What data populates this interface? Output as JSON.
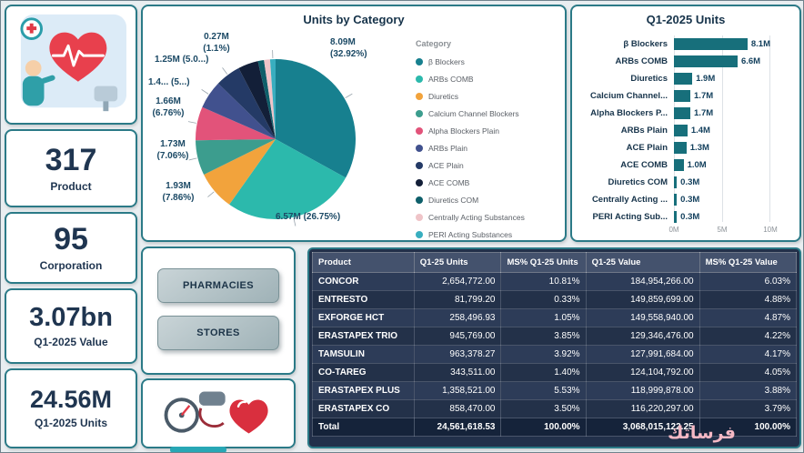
{
  "kpis": [
    {
      "value": "317",
      "label": "Product"
    },
    {
      "value": "95",
      "label": "Corporation"
    },
    {
      "value": "3.07bn",
      "label": "Q1-2025 Value"
    },
    {
      "value": "24.56M",
      "label": "Q1-2025 Units"
    }
  ],
  "buttons": {
    "pharmacies": "PHARMACIES",
    "stores": "STORES"
  },
  "watermark": "فرساتك",
  "chart_data": [
    {
      "type": "pie",
      "title": "Units by Category",
      "legend_title": "Category",
      "legend_position": "right",
      "categories": [
        "β Blockers",
        "ARBs COMB",
        "Diuretics",
        "Calcium Channel Blockers",
        "Alpha Blockers Plain",
        "ARBs Plain",
        "ACE Plain",
        "ACE COMB",
        "Diuretics COM",
        "Centrally Acting Substances",
        "PERI Acting Substances"
      ],
      "values": [
        8.09,
        6.57,
        1.93,
        1.73,
        1.66,
        1.4,
        1.25,
        1.0,
        0.3,
        0.3,
        0.27
      ],
      "percents": [
        32.92,
        26.75,
        7.86,
        7.06,
        6.76,
        5.7,
        5.09,
        4.07,
        1.22,
        1.22,
        1.1
      ],
      "colors": [
        "#17808f",
        "#2cb9ac",
        "#f2a33c",
        "#3c9d8e",
        "#e2537a",
        "#41518e",
        "#243a66",
        "#131f38",
        "#0e5f6a",
        "#efc4c8",
        "#38aebf"
      ],
      "point_labels": [
        {
          "slice": 0,
          "text": "8.09M\n(32.92%)"
        },
        {
          "slice": 1,
          "text": "6.57M (26.75%)"
        },
        {
          "slice": 2,
          "text": "1.93M\n(7.86%)"
        },
        {
          "slice": 3,
          "text": "1.73M\n(7.06%)"
        },
        {
          "slice": 4,
          "text": "1.66M\n(6.76%)"
        },
        {
          "slice": 5,
          "text": "1.4... (5...)"
        },
        {
          "slice": 6,
          "text": "1.25M (5.0...)"
        },
        {
          "slice": 10,
          "text": "0.27M\n(1.1%)"
        }
      ]
    },
    {
      "type": "bar",
      "orientation": "horizontal",
      "title": "Q1-2025 Units",
      "categories": [
        "β Blockers",
        "ARBs COMB",
        "Diuretics",
        "Calcium Channel...",
        "Alpha Blockers P...",
        "ARBs Plain",
        "ACE Plain",
        "ACE COMB",
        "Diuretics COM",
        "Centrally Acting ...",
        "PERI Acting Sub..."
      ],
      "values": [
        8.1,
        6.6,
        1.9,
        1.7,
        1.7,
        1.4,
        1.3,
        1.0,
        0.3,
        0.3,
        0.3
      ],
      "value_labels": [
        "8.1M",
        "6.6M",
        "1.9M",
        "1.7M",
        "1.7M",
        "1.4M",
        "1.3M",
        "1.0M",
        "0.3M",
        "0.3M",
        "0.3M"
      ],
      "xlim": [
        0,
        10
      ],
      "x_ticks": [
        "0M",
        "5M",
        "10M"
      ],
      "bar_color": "#176f7b",
      "grid": true,
      "legend_position": "none"
    }
  ],
  "table": {
    "columns": [
      "Product",
      "Q1-25 Units",
      "MS% Q1-25 Units",
      "Q1-25 Value",
      "MS% Q1-25 Value"
    ],
    "rows": [
      [
        "CONCOR",
        "2,654,772.00",
        "10.81%",
        "184,954,266.00",
        "6.03%"
      ],
      [
        "ENTRESTO",
        "81,799.20",
        "0.33%",
        "149,859,699.00",
        "4.88%"
      ],
      [
        "EXFORGE HCT",
        "258,496.93",
        "1.05%",
        "149,558,940.00",
        "4.87%"
      ],
      [
        "ERASTAPEX TRIO",
        "945,769.00",
        "3.85%",
        "129,346,476.00",
        "4.22%"
      ],
      [
        "TAMSULIN",
        "963,378.27",
        "3.92%",
        "127,991,684.00",
        "4.17%"
      ],
      [
        "CO-TAREG",
        "343,511.00",
        "1.40%",
        "124,104,792.00",
        "4.05%"
      ],
      [
        "ERASTAPEX PLUS",
        "1,358,521.00",
        "5.53%",
        "118,999,878.00",
        "3.88%"
      ],
      [
        "ERASTAPEX CO",
        "858,470.00",
        "3.50%",
        "116,220,297.00",
        "3.79%"
      ]
    ],
    "total": [
      "Total",
      "24,561,618.53",
      "100.00%",
      "3,068,015,122.25",
      "100.00%"
    ]
  },
  "colors": {
    "card_border": "#2b7a87",
    "kpi_text": "#1f3550",
    "bar": "#176f7b",
    "table_header": "#44526d",
    "row_odd": "#2d3c58",
    "row_even": "#233149",
    "total_row": "#15233a",
    "accent_teal": "#28a7b5",
    "watermark_pink": "#f5b8c4"
  }
}
